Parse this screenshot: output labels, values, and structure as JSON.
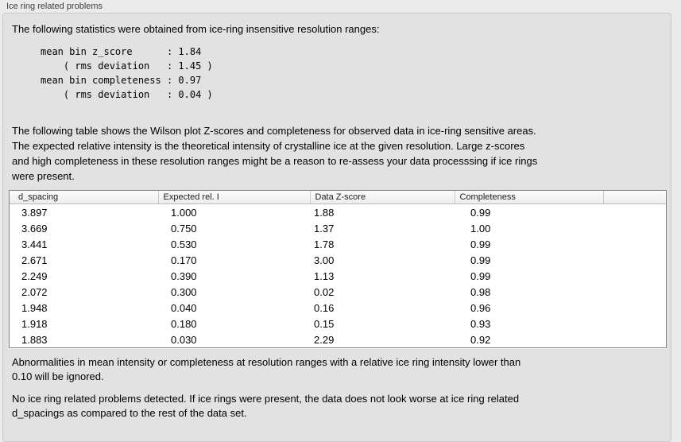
{
  "panel": {
    "title": "Ice ring related problems"
  },
  "colors": {
    "page_bg": "#ebebeb",
    "group_box_bg": "#e2e2e2",
    "table_border": "#828282",
    "table_bg": "#ffffff"
  },
  "stats": {
    "intro": "The following statistics were obtained from ice-ring insensitive resolution ranges:",
    "lines": [
      "mean bin z_score      : 1.84",
      "    ( rms deviation   : 1.45 )",
      "mean bin completeness : 0.97",
      "    ( rms deviation   : 0.04 )"
    ]
  },
  "description": {
    "lines": [
      "The following table shows the Wilson plot Z-scores and completeness for observed data in ice-ring sensitive areas.",
      "The expected relative intensity is the theoretical intensity of crystalline ice at the given resolution. Large z-scores",
      "and high completeness in these resolution ranges might be a reason to re-assess your data processsing if ice rings",
      "were present."
    ]
  },
  "table": {
    "headers": [
      "d_spacing",
      "Expected rel. I",
      "Data Z-score",
      "Completeness",
      ""
    ],
    "rows": [
      [
        "3.897",
        "1.000",
        "1.88",
        "0.99",
        ""
      ],
      [
        "3.669",
        "0.750",
        "1.37",
        "1.00",
        ""
      ],
      [
        "3.441",
        "0.530",
        "1.78",
        "0.99",
        ""
      ],
      [
        "2.671",
        "0.170",
        "3.00",
        "0.99",
        ""
      ],
      [
        "2.249",
        "0.390",
        "1.13",
        "0.99",
        ""
      ],
      [
        "2.072",
        "0.300",
        "0.02",
        "0.98",
        ""
      ],
      [
        "1.948",
        "0.040",
        "0.16",
        "0.96",
        ""
      ],
      [
        "1.918",
        "0.180",
        "0.15",
        "0.93",
        ""
      ],
      [
        "1.883",
        "0.030",
        "2.29",
        "0.92",
        ""
      ]
    ]
  },
  "notes": {
    "ignore_lines": [
      "Abnormalities in mean intensity or completeness at resolution ranges with a relative ice ring intensity lower than",
      "0.10 will be ignored."
    ],
    "conclusion_lines": [
      "No ice ring related problems detected. If ice rings were present, the data does not look worse at ice ring related",
      "d_spacings as compared to the rest of the data set."
    ]
  }
}
